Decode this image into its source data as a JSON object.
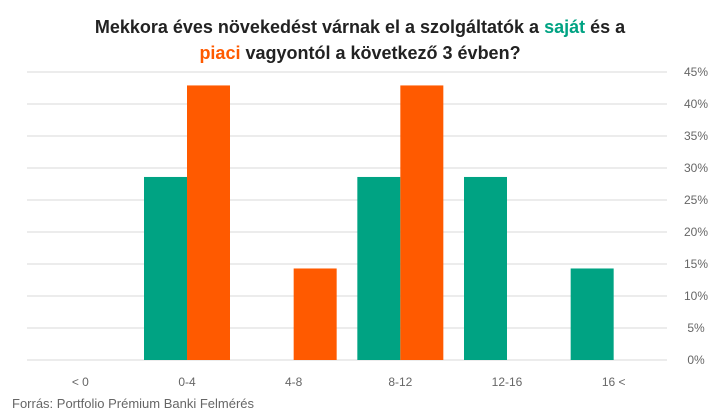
{
  "title": {
    "part1": "Mekkora éves növekedést várnak el a szolgáltatók a ",
    "word_own": "saját",
    "part2": " és a",
    "word_market": "piaci",
    "part3": " vagyontól a következő 3 évben?"
  },
  "source": "Forrás: Portfolio Prémium Banki Felmérés",
  "colors": {
    "own": "#00A383",
    "market": "#FF5A00",
    "grid": "#d9d9d9",
    "text": "#222222",
    "axis_text": "#666666"
  },
  "chart_data": {
    "type": "bar",
    "categories": [
      "< 0",
      "0-4",
      "4-8",
      "8-12",
      "12-16",
      "16 <"
    ],
    "series": [
      {
        "name": "saját",
        "values": [
          0,
          28.6,
          0,
          28.6,
          28.6,
          14.3
        ]
      },
      {
        "name": "piaci",
        "values": [
          0,
          42.9,
          14.3,
          42.9,
          0,
          0
        ]
      }
    ],
    "ylim": [
      0,
      45
    ],
    "yticks": [
      "0%",
      "5%",
      "10%",
      "15%",
      "20%",
      "25%",
      "30%",
      "35%",
      "40%",
      "45%"
    ],
    "ytick_values": [
      0,
      5,
      10,
      15,
      20,
      25,
      30,
      35,
      40,
      45
    ],
    "y_axis_side": "right",
    "grid": true,
    "legend": "none",
    "xlabel": "",
    "ylabel": ""
  }
}
